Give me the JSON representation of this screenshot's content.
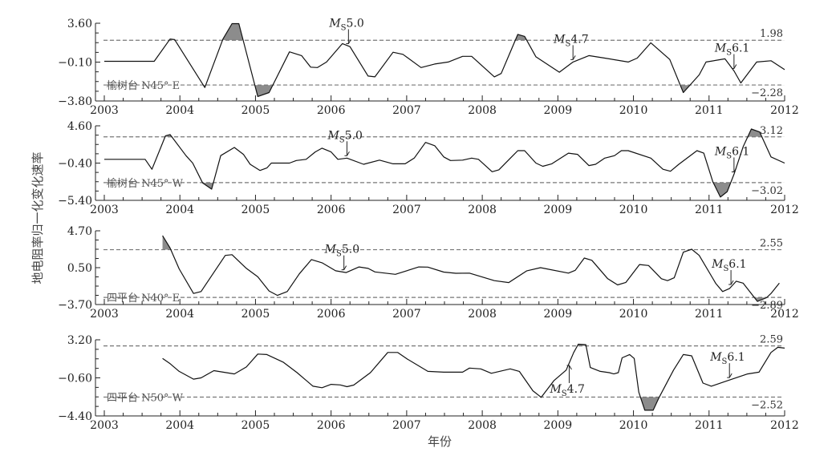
{
  "chart_data": [
    {
      "type": "line",
      "station": "榆树台 N45° E",
      "ylim": [
        -3.8,
        3.6
      ],
      "yticks": [
        "3.60",
        "−0.10",
        "−3.80"
      ],
      "yticks_values": [
        3.6,
        -0.1,
        -3.8
      ],
      "thresholds": {
        "upper": 1.98,
        "lower": -2.28,
        "upper_label": "1.98",
        "lower_label": "−2.28"
      },
      "exceedance_fill": "#8c8c8c",
      "events": [
        {
          "year": 2006.23,
          "label_m": "M",
          "label_sub": "S",
          "label_mag": "5.0",
          "direction": "down"
        },
        {
          "year": 2009.2,
          "label_m": "M",
          "label_sub": "S",
          "label_mag": "4.7",
          "direction": "down"
        },
        {
          "year": 2011.33,
          "label_m": "M",
          "label_sub": "S",
          "label_mag": "6.1",
          "direction": "down"
        }
      ],
      "x": [
        2003.0,
        2003.66,
        2003.87,
        2003.93,
        2004.33,
        2004.57,
        2004.69,
        2004.78,
        2005.03,
        2005.18,
        2005.45,
        2005.61,
        2005.73,
        2005.82,
        2005.94,
        2006.15,
        2006.25,
        2006.49,
        2006.58,
        2006.82,
        2006.95,
        2007.19,
        2007.37,
        2007.55,
        2007.74,
        2007.86,
        2008.16,
        2008.25,
        2008.47,
        2008.56,
        2008.71,
        2009.02,
        2009.2,
        2009.41,
        2009.62,
        2009.93,
        2010.05,
        2010.23,
        2010.48,
        2010.66,
        2010.87,
        2010.96,
        2011.21,
        2011.33,
        2011.42,
        2011.63,
        2011.82,
        2012.0
      ],
      "y": [
        -0.02,
        -0.02,
        2.1,
        2.05,
        -2.52,
        2.1,
        3.56,
        3.56,
        -3.37,
        -3.0,
        0.88,
        0.52,
        -0.58,
        -0.62,
        -0.09,
        1.66,
        1.37,
        -1.43,
        -1.5,
        0.84,
        0.64,
        -0.62,
        -0.28,
        -0.09,
        0.45,
        0.45,
        -1.5,
        -1.18,
        2.54,
        2.35,
        0.4,
        -1.06,
        -0.09,
        0.52,
        0.28,
        -0.09,
        0.28,
        1.74,
        0.15,
        -3.0,
        -1.31,
        -0.09,
        0.21,
        -0.94,
        -2.08,
        -0.09,
        0.03,
        -0.82
      ]
    },
    {
      "type": "line",
      "station": "榆树台 N45° W",
      "ylim": [
        -5.4,
        4.6
      ],
      "yticks": [
        "4.60",
        "−0.40",
        "−5.40"
      ],
      "yticks_values": [
        4.6,
        -0.4,
        -5.4
      ],
      "thresholds": {
        "upper": 3.12,
        "lower": -3.02,
        "upper_label": "3.12",
        "lower_label": "−3.02"
      },
      "exceedance_fill": "#8c8c8c",
      "events": [
        {
          "year": 2006.21,
          "label_m": "M",
          "label_sub": "S",
          "label_mag": "5.0",
          "direction": "down"
        },
        {
          "year": 2011.33,
          "label_m": "M",
          "label_sub": "S",
          "label_mag": "6.1",
          "direction": "down"
        }
      ],
      "x": [
        2003.0,
        2003.54,
        2003.63,
        2003.81,
        2003.87,
        2004.08,
        2004.17,
        2004.3,
        2004.42,
        2004.54,
        2004.72,
        2004.84,
        2004.93,
        2005.06,
        2005.15,
        2005.21,
        2005.45,
        2005.54,
        2005.67,
        2005.79,
        2005.88,
        2006.0,
        2006.09,
        2006.21,
        2006.43,
        2006.64,
        2006.82,
        2006.98,
        2007.1,
        2007.25,
        2007.37,
        2007.49,
        2007.58,
        2007.74,
        2007.86,
        2007.95,
        2008.13,
        2008.22,
        2008.47,
        2008.56,
        2008.71,
        2008.8,
        2008.92,
        2009.14,
        2009.26,
        2009.41,
        2009.5,
        2009.62,
        2009.75,
        2009.84,
        2009.93,
        2010.23,
        2010.39,
        2010.49,
        2010.6,
        2010.84,
        2010.93,
        2011.05,
        2011.15,
        2011.24,
        2011.33,
        2011.45,
        2011.56,
        2011.67,
        2011.82,
        2012.0
      ],
      "y": [
        0.1,
        0.1,
        -1.23,
        3.27,
        3.43,
        0.6,
        -0.4,
        -3.06,
        -3.9,
        0.6,
        1.7,
        0.77,
        -0.56,
        -1.39,
        -1.06,
        -0.4,
        -0.4,
        -0.06,
        0.1,
        1.1,
        1.6,
        1.1,
        0.1,
        0.27,
        -0.56,
        0.0,
        -0.5,
        -0.5,
        0.27,
        2.37,
        1.93,
        0.43,
        -0.06,
        0.0,
        0.27,
        0.1,
        -1.56,
        -1.3,
        1.27,
        1.27,
        -0.4,
        -0.83,
        -0.5,
        0.93,
        0.77,
        -0.73,
        -0.56,
        0.27,
        0.6,
        1.27,
        1.27,
        0.27,
        -1.23,
        -1.5,
        -0.56,
        1.27,
        0.93,
        -2.9,
        -4.96,
        -4.23,
        -1.9,
        1.77,
        4.17,
        3.77,
        0.43,
        -0.4
      ]
    },
    {
      "type": "line",
      "station": "四平台 N40° E",
      "ylim": [
        -3.7,
        4.7
      ],
      "yticks": [
        "4.70",
        "0.50",
        "−3.70"
      ],
      "yticks_values": [
        4.7,
        0.5,
        -3.7
      ],
      "thresholds": {
        "upper": 2.55,
        "lower": -2.89,
        "upper_label": "2.55",
        "lower_label": "−2.89"
      },
      "exceedance_fill": "#8c8c8c",
      "events": [
        {
          "year": 2006.17,
          "label_m": "M",
          "label_sub": "S",
          "label_mag": "5.0",
          "direction": "down"
        },
        {
          "year": 2011.29,
          "label_m": "M",
          "label_sub": "S",
          "label_mag": "6.1",
          "direction": "down"
        }
      ],
      "x": [
        2003.77,
        2003.87,
        2003.99,
        2004.18,
        2004.28,
        2004.6,
        2004.69,
        2004.88,
        2005.03,
        2005.18,
        2005.29,
        2005.42,
        2005.58,
        2005.74,
        2005.88,
        2006.06,
        2006.2,
        2006.37,
        2006.49,
        2006.58,
        2006.85,
        2007.16,
        2007.28,
        2007.49,
        2007.65,
        2007.83,
        2008.16,
        2008.35,
        2008.59,
        2008.77,
        2009.14,
        2009.23,
        2009.35,
        2009.45,
        2009.66,
        2009.79,
        2009.9,
        2010.08,
        2010.2,
        2010.37,
        2010.45,
        2010.54,
        2010.66,
        2010.77,
        2010.87,
        2011.09,
        2011.18,
        2011.27,
        2011.36,
        2011.45,
        2011.64,
        2011.76,
        2011.82,
        2011.93
      ],
      "y": [
        4.14,
        2.74,
        0.36,
        -2.44,
        -2.22,
        1.9,
        1.98,
        0.42,
        -0.54,
        -2.16,
        -2.66,
        -2.22,
        -0.2,
        1.42,
        1.06,
        0.14,
        -0.06,
        0.58,
        0.42,
        0.02,
        -0.26,
        0.58,
        0.56,
        0.0,
        -0.14,
        -0.12,
        -0.98,
        -1.2,
        0.14,
        0.5,
        -0.12,
        0.2,
        1.6,
        1.34,
        -0.76,
        -1.46,
        -1.18,
        0.86,
        0.75,
        -0.76,
        -0.98,
        -0.65,
        2.26,
        2.6,
        1.9,
        -1.32,
        -2.22,
        -1.88,
        -1.04,
        -1.26,
        -3.34,
        -2.92,
        -2.44,
        -1.26
      ]
    },
    {
      "type": "line",
      "station": "四平台 N50° W",
      "ylim": [
        -4.4,
        3.2
      ],
      "yticks": [
        "3.20",
        "−0.60",
        "−4.40"
      ],
      "yticks_values": [
        3.2,
        -0.6,
        -4.4
      ],
      "thresholds": {
        "upper": 2.59,
        "lower": -2.52,
        "upper_label": "2.59",
        "lower_label": "−2.52"
      },
      "exceedance_fill": "#8c8c8c",
      "events": [
        {
          "year": 2009.15,
          "label_m": "M",
          "label_sub": "S",
          "label_mag": "4.7",
          "direction": "up"
        },
        {
          "year": 2011.27,
          "label_m": "M",
          "label_sub": "S",
          "label_mag": "6.1",
          "direction": "down"
        }
      ],
      "x": [
        2003.77,
        2003.87,
        2003.99,
        2004.18,
        2004.28,
        2004.45,
        2004.72,
        2004.88,
        2005.03,
        2005.15,
        2005.37,
        2005.55,
        2005.76,
        2005.88,
        2006.0,
        2006.12,
        2006.21,
        2006.3,
        2006.52,
        2006.75,
        2006.88,
        2007.01,
        2007.28,
        2007.49,
        2007.74,
        2007.83,
        2007.98,
        2008.12,
        2008.37,
        2008.49,
        2008.67,
        2008.78,
        2008.95,
        2009.11,
        2009.21,
        2009.27,
        2009.37,
        2009.43,
        2009.56,
        2009.68,
        2009.74,
        2009.8,
        2009.85,
        2009.95,
        2010.01,
        2010.07,
        2010.15,
        2010.26,
        2010.34,
        2010.53,
        2010.66,
        2010.77,
        2010.92,
        2011.03,
        2011.2,
        2011.51,
        2011.66,
        2011.82,
        2011.91,
        2012.0
      ],
      "y": [
        1.34,
        0.82,
        0.05,
        -0.73,
        -0.6,
        0.12,
        -0.21,
        0.49,
        1.78,
        1.73,
        0.95,
        -0.08,
        -1.43,
        -1.58,
        -1.25,
        -1.3,
        -1.48,
        -1.32,
        -0.08,
        1.94,
        1.94,
        1.27,
        0.05,
        -0.03,
        -0.03,
        0.38,
        0.3,
        -0.14,
        0.3,
        0.05,
        -1.89,
        -2.54,
        -0.86,
        0.18,
        1.94,
        2.76,
        2.71,
        0.43,
        0.05,
        -0.08,
        -0.21,
        -0.08,
        1.4,
        1.73,
        1.34,
        -2.02,
        -3.83,
        -3.83,
        -2.54,
        0.18,
        1.73,
        1.6,
        -1.12,
        -1.43,
        -0.99,
        -0.21,
        -0.03,
        1.94,
        2.45,
        2.37
      ]
    }
  ],
  "xaxis": {
    "xlim": [
      2003,
      2012
    ],
    "tick_labels": [
      "2003",
      "2004",
      "2005",
      "2006",
      "2007",
      "2008",
      "2009",
      "2010",
      "2011",
      "2012"
    ],
    "xlabel": "年份"
  },
  "ylabel": "地电阻率归一化变化速率",
  "colors": {
    "line": "#111111",
    "threshold": "#777777",
    "fill": "#8c8c8c"
  }
}
